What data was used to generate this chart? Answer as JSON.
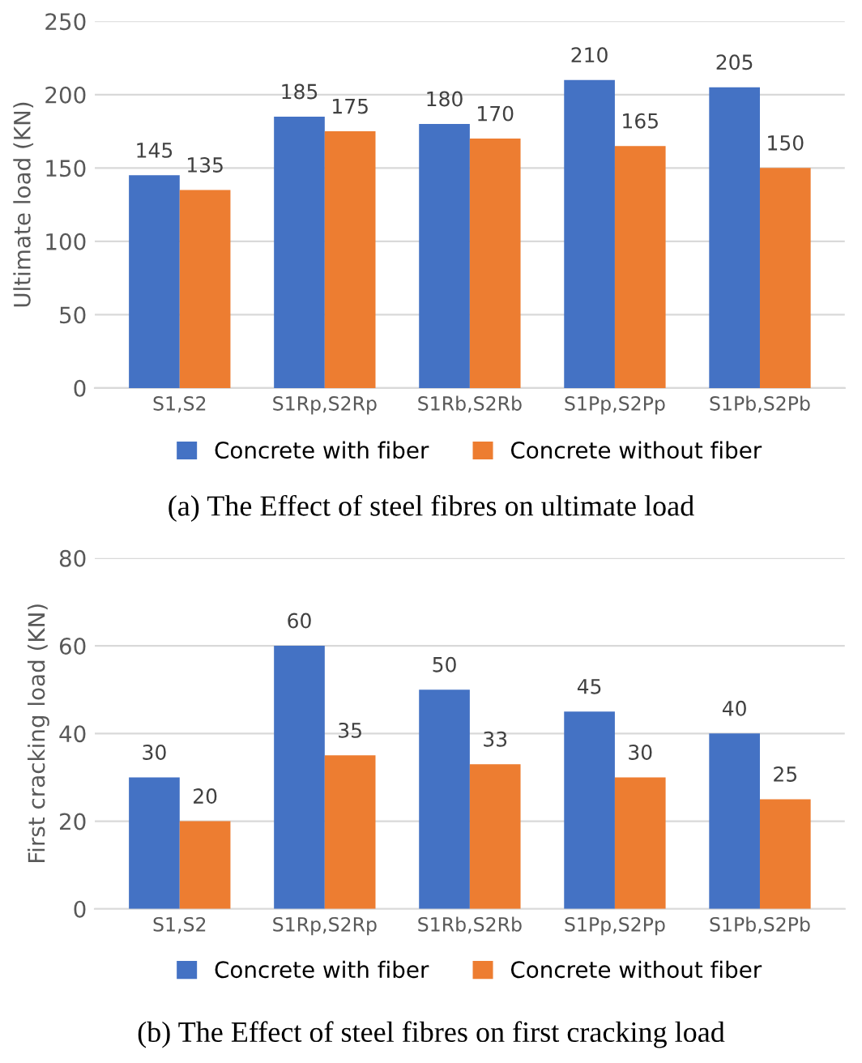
{
  "chart_data": [
    {
      "type": "bar",
      "ylabel": "Ultimate load (KN)",
      "categories": [
        "S1,S2",
        "S1Rp,S2Rp",
        "S1Rb,S2Rb",
        "S1Pp,S2Pp",
        "S1Pb,S2Pb"
      ],
      "series": [
        {
          "name": "Concrete with fiber",
          "color": "#4472c4",
          "values": [
            145,
            185,
            180,
            210,
            205
          ]
        },
        {
          "name": "Concrete without fiber",
          "color": "#ed7d31",
          "values": [
            135,
            175,
            170,
            165,
            150
          ]
        }
      ],
      "ylim": [
        0,
        250
      ],
      "yticks": [
        0,
        50,
        100,
        150,
        200,
        250
      ],
      "grid": "y",
      "legend": "bottom",
      "data_labels": true,
      "annotations": [
        "(a) The Effect of steel fibres on ultimate load"
      ]
    },
    {
      "type": "bar",
      "ylabel": "First cracking load (KN)",
      "categories": [
        "S1,S2",
        "S1Rp,S2Rp",
        "S1Rb,S2Rb",
        "S1Pp,S2Pp",
        "S1Pb,S2Pb"
      ],
      "series": [
        {
          "name": "Concrete with fiber",
          "color": "#4472c4",
          "values": [
            30,
            60,
            50,
            45,
            40
          ]
        },
        {
          "name": "Concrete without fiber",
          "color": "#ed7d31",
          "values": [
            20,
            35,
            33,
            30,
            25
          ]
        }
      ],
      "ylim": [
        0,
        80
      ],
      "yticks": [
        0,
        20,
        40,
        60,
        80
      ],
      "grid": "y",
      "legend": "bottom",
      "data_labels": true,
      "annotations": [
        "(b) The Effect of steel fibres on first cracking load"
      ]
    }
  ]
}
